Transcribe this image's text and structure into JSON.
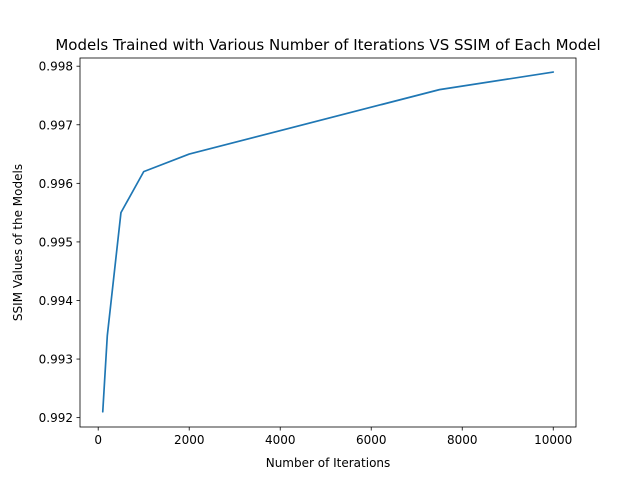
{
  "chart_data": {
    "type": "line",
    "title": "Models Trained with Various Number of Iterations VS SSIM of Each Model",
    "xlabel": "Number of Iterations",
    "ylabel": "SSIM Values of the Models",
    "xlim": [
      -400,
      10500
    ],
    "ylim": [
      0.99184,
      0.99814
    ],
    "x_ticks": [
      0,
      2000,
      4000,
      6000,
      8000,
      10000
    ],
    "x_tick_labels": [
      "0",
      "2000",
      "4000",
      "6000",
      "8000",
      "10000"
    ],
    "y_ticks": [
      0.992,
      0.993,
      0.994,
      0.995,
      0.996,
      0.997,
      0.998
    ],
    "y_tick_labels": [
      "0.992",
      "0.993",
      "0.994",
      "0.995",
      "0.996",
      "0.997",
      "0.998"
    ],
    "grid": false,
    "legend": "none",
    "series": [
      {
        "color": "#1f77b4",
        "x": [
          100,
          200,
          500,
          1000,
          2000,
          7500,
          10000
        ],
        "y": [
          0.9921,
          0.9934,
          0.9955,
          0.9962,
          0.9965,
          0.9976,
          0.9979
        ]
      }
    ]
  }
}
